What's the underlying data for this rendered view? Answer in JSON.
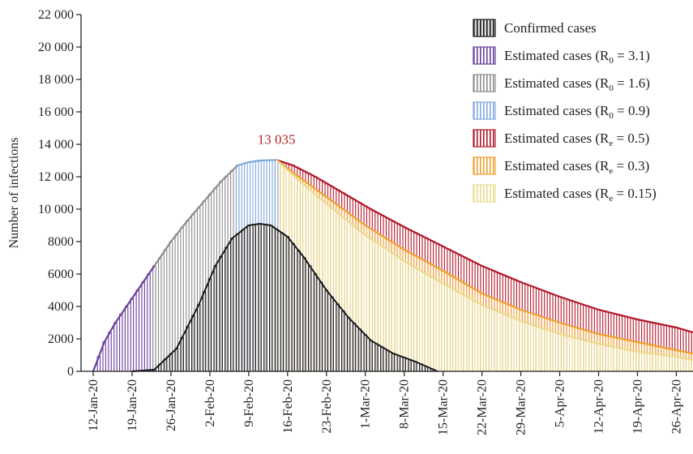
{
  "chart_data": {
    "type": "bar",
    "ylabel": "Number of infections",
    "xlabel": "",
    "ylim": [
      0,
      22000
    ],
    "ytick_values": [
      0,
      2000,
      4000,
      6000,
      8000,
      10000,
      12000,
      14000,
      16000,
      18000,
      20000,
      22000
    ],
    "ytick_labels": [
      "0",
      "2000",
      "4000",
      "6000",
      "8000",
      "10 000",
      "12 000",
      "14 000",
      "16 000",
      "18 000",
      "20 000",
      "22 000"
    ],
    "x_start": "12-Jan-20",
    "x_end": "29-Apr-20",
    "xtick_labels": [
      "12-Jan-20",
      "19-Jan-20",
      "26-Jan-20",
      "2-Feb-20",
      "9-Feb-20",
      "16-Feb-20",
      "23-Feb-20",
      "1-Mar-20",
      "8-Mar-20",
      "15-Mar-20",
      "22-Mar-20",
      "29-Mar-20",
      "5-Apr-20",
      "12-Apr-20",
      "19-Apr-20",
      "26-Apr-20"
    ],
    "peak_annotation": "13 035",
    "peak_date": "14-Feb-20",
    "peak_value": 13035,
    "legend_position": "top-right",
    "series": [
      {
        "name": "Confirmed cases",
        "color": "#1a1a1a",
        "fill": "#d9d9d9",
        "x": [
          "19-Jan-20",
          "23-Jan-20",
          "27-Jan-20",
          "31-Jan-20",
          "3-Feb-20",
          "6-Feb-20",
          "9-Feb-20",
          "11-Feb-20",
          "13-Feb-20",
          "16-Feb-20",
          "19-Feb-20",
          "23-Feb-20",
          "27-Feb-20",
          "2-Mar-20",
          "6-Mar-20",
          "10-Mar-20",
          "14-Mar-20"
        ],
        "values": [
          0,
          100,
          1400,
          4100,
          6500,
          8200,
          9000,
          9100,
          9000,
          8300,
          7000,
          5000,
          3300,
          1900,
          1100,
          600,
          0
        ]
      },
      {
        "name": "Estimated cases (R0 = 3.1)",
        "color": "#6a3d9a",
        "x": [
          "12-Jan-20",
          "14-Jan-20",
          "16-Jan-20",
          "18-Jan-20",
          "20-Jan-20",
          "22-Jan-20",
          "23-Jan-20"
        ],
        "values": [
          0,
          1800,
          3000,
          4000,
          5000,
          6000,
          6500
        ]
      },
      {
        "name": "Estimated cases (R0 = 1.6)",
        "color": "#8c8c8c",
        "x": [
          "23-Jan-20",
          "26-Jan-20",
          "29-Jan-20",
          "1-Feb-20",
          "4-Feb-20",
          "7-Feb-20"
        ],
        "values": [
          6500,
          8000,
          9300,
          10500,
          11700,
          12700
        ]
      },
      {
        "name": "Estimated cases (R0 = 0.9)",
        "color": "#7fa8e0",
        "x": [
          "7-Feb-20",
          "9-Feb-20",
          "11-Feb-20",
          "14-Feb-20"
        ],
        "values": [
          12700,
          12900,
          13000,
          13035
        ]
      },
      {
        "name": "Estimated cases (Re = 0.5)",
        "color": "#b2182b",
        "x": [
          "14-Feb-20",
          "17-Feb-20",
          "21-Feb-20",
          "26-Feb-20",
          "2-Mar-20",
          "8-Mar-20",
          "15-Mar-20",
          "22-Mar-20",
          "29-Mar-20",
          "5-Apr-20",
          "12-Apr-20",
          "19-Apr-20",
          "26-Apr-20",
          "29-Apr-20"
        ],
        "values": [
          13035,
          12700,
          12000,
          11000,
          10000,
          8900,
          7700,
          6500,
          5500,
          4600,
          3800,
          3200,
          2700,
          2400
        ]
      },
      {
        "name": "Estimated cases (Re = 0.3)",
        "color": "#f0a030",
        "x": [
          "14-Feb-20",
          "18-Feb-20",
          "22-Feb-20",
          "26-Feb-20",
          "1-Mar-20",
          "8-Mar-20",
          "15-Mar-20",
          "22-Mar-20",
          "29-Mar-20",
          "5-Apr-20",
          "12-Apr-20",
          "19-Apr-20",
          "26-Apr-20",
          "29-Apr-20"
        ],
        "values": [
          13035,
          12000,
          11000,
          10000,
          9000,
          7500,
          6200,
          4800,
          3800,
          3000,
          2300,
          1800,
          1300,
          1100
        ]
      },
      {
        "name": "Estimated cases (Re = 0.15)",
        "color": "#eadb8e",
        "x": [
          "14-Feb-20",
          "18-Feb-20",
          "22-Feb-20",
          "26-Feb-20",
          "1-Mar-20",
          "8-Mar-20",
          "15-Mar-20",
          "22-Mar-20",
          "29-Mar-20",
          "5-Apr-20",
          "12-Apr-20",
          "19-Apr-20",
          "26-Apr-20",
          "29-Apr-20"
        ],
        "values": [
          13035,
          11800,
          10600,
          9500,
          8400,
          6800,
          5400,
          4100,
          3100,
          2300,
          1700,
          1200,
          900,
          700
        ]
      }
    ]
  },
  "legend": [
    {
      "prefix": "Confirmed cases",
      "sym": "",
      "sub": "",
      "suffix": ""
    },
    {
      "prefix": "Estimated cases (R",
      "sym": "",
      "sub": "0",
      "suffix": " = 3.1)"
    },
    {
      "prefix": "Estimated cases (R",
      "sym": "",
      "sub": "0",
      "suffix": " = 1.6)"
    },
    {
      "prefix": "Estimated cases (R",
      "sym": "",
      "sub": "0",
      "suffix": " = 0.9)"
    },
    {
      "prefix": "Estimated cases (R",
      "sym": "",
      "sub": "e",
      "suffix": " = 0.5)"
    },
    {
      "prefix": "Estimated cases (R",
      "sym": "",
      "sub": "e",
      "suffix": " = 0.3)"
    },
    {
      "prefix": "Estimated cases (R",
      "sym": "",
      "sub": "e",
      "suffix": " = 0.15)"
    }
  ]
}
